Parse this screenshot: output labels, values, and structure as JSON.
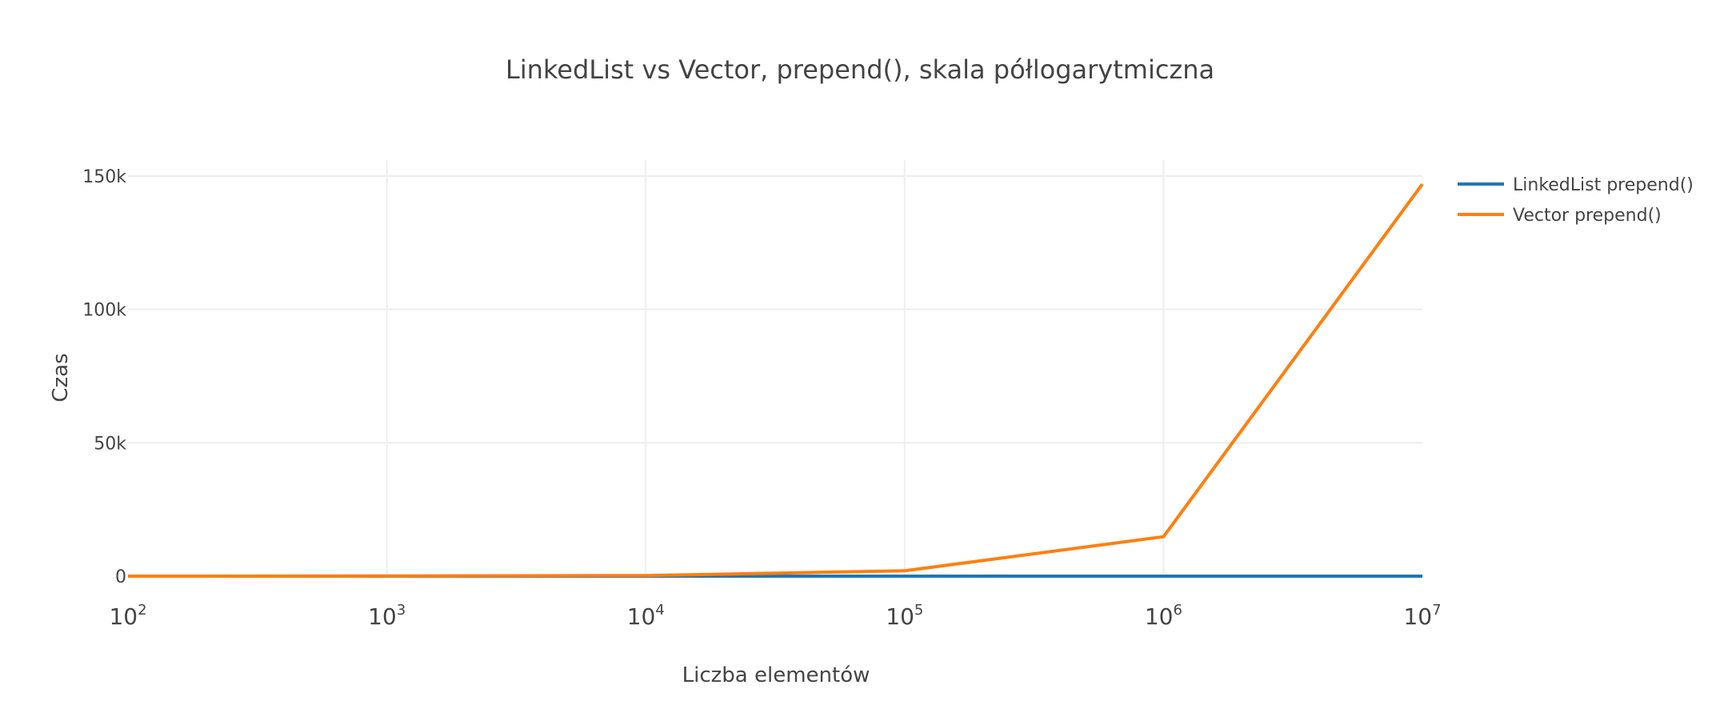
{
  "chart_data": {
    "type": "line",
    "title": "LinkedList vs Vector, prepend(), skala półlogarytmiczna",
    "xlabel": "Liczba elementów",
    "ylabel": "Czas",
    "x_scale": "log",
    "x": [
      100,
      1000,
      10000,
      100000,
      1000000,
      10000000
    ],
    "xlim": [
      100,
      10000000
    ],
    "ylim": [
      0,
      155000
    ],
    "x_ticks": [
      {
        "base": "10",
        "exp": "2",
        "value": 100
      },
      {
        "base": "10",
        "exp": "3",
        "value": 1000
      },
      {
        "base": "10",
        "exp": "4",
        "value": 10000
      },
      {
        "base": "10",
        "exp": "5",
        "value": 100000
      },
      {
        "base": "10",
        "exp": "6",
        "value": 1000000
      },
      {
        "base": "10",
        "exp": "7",
        "value": 10000000
      }
    ],
    "y_ticks": [
      {
        "label": "0",
        "value": 0
      },
      {
        "label": "50k",
        "value": 50000
      },
      {
        "label": "100k",
        "value": 100000
      },
      {
        "label": "150k",
        "value": 150000
      }
    ],
    "grid": true,
    "legend_position": "top-right",
    "series": [
      {
        "name": "LinkedList prepend()",
        "color": "#1f77b4",
        "values": [
          0,
          0,
          0,
          0,
          0,
          0
        ]
      },
      {
        "name": "Vector prepend()",
        "color": "#ff7f0e",
        "values": [
          5,
          60,
          250,
          2000,
          14800,
          147000
        ]
      }
    ]
  }
}
